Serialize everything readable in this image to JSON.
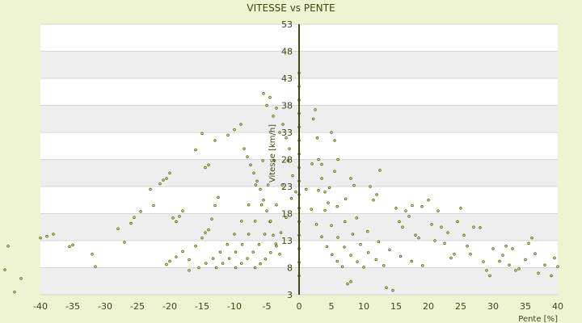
{
  "chart_data": {
    "type": "scatter",
    "title": "VITESSE vs PENTE",
    "xlabel": "Pente [%]",
    "ylabel": "Vitesse [km/h]",
    "xlim": [
      -40,
      40
    ],
    "ylim": [
      3,
      53
    ],
    "x_ticks": [
      "-40",
      "-35",
      "-30",
      "-25",
      "-20",
      "-15",
      "-10",
      "-5",
      "0",
      "5",
      "10",
      "15",
      "20",
      "25",
      "30",
      "35",
      "40"
    ],
    "y_ticks": [
      "53",
      "48",
      "43",
      "38",
      "33",
      "28",
      "23",
      "18",
      "13",
      "8",
      "3"
    ],
    "grid": true,
    "legend": "none",
    "colors": {
      "marker": "#5a6a12",
      "marker_fill": "#f4f7de",
      "band_light": "#ffffff",
      "band_dark": "#eeeeee",
      "gridline": "#d6d6d6",
      "axis": "#3f4a12"
    },
    "series": [
      {
        "points": [
          [
            -40,
            13.5
          ],
          [
            -39,
            13.8
          ],
          [
            -38,
            14.2
          ],
          [
            -35.5,
            11.9
          ],
          [
            -35,
            12.2
          ],
          [
            -32,
            10.5
          ],
          [
            -31.5,
            8.2
          ],
          [
            -28,
            15.2
          ],
          [
            -27,
            12.7
          ],
          [
            -26,
            16.2
          ],
          [
            -25.5,
            17.3
          ],
          [
            -24.5,
            18.4
          ],
          [
            -23,
            22.5
          ],
          [
            -22.5,
            19.5
          ],
          [
            -21.5,
            23.5
          ],
          [
            -21,
            24.2
          ],
          [
            -20.5,
            24.5
          ],
          [
            -20,
            25.5
          ],
          [
            -19.5,
            17.2
          ],
          [
            -19,
            16.5
          ],
          [
            -18.5,
            17.5
          ],
          [
            -18,
            18.5
          ],
          [
            -17,
            7.5
          ],
          [
            -20.5,
            8.6
          ],
          [
            -20,
            9.2
          ],
          [
            -19,
            10
          ],
          [
            -18,
            11
          ],
          [
            -17,
            9.5
          ],
          [
            -16,
            12
          ],
          [
            -15,
            13.5
          ],
          [
            -14.5,
            14.5
          ],
          [
            -14,
            15
          ],
          [
            -13.5,
            17
          ],
          [
            -13,
            19.5
          ],
          [
            -12.5,
            21
          ],
          [
            -16,
            29.8
          ],
          [
            -15,
            32.8
          ],
          [
            -14.5,
            26.5
          ],
          [
            -14,
            27
          ],
          [
            -13,
            31.5
          ],
          [
            -11,
            32.5
          ],
          [
            -10,
            33.5
          ],
          [
            -9,
            34.5
          ],
          [
            -8.5,
            30
          ],
          [
            -8,
            28.5
          ],
          [
            -7.5,
            27
          ],
          [
            -7,
            25.5
          ],
          [
            -6.5,
            24
          ],
          [
            -6,
            22.5
          ],
          [
            -5.5,
            20.5
          ],
          [
            -5,
            18.5
          ],
          [
            -4.5,
            16.5
          ],
          [
            -4,
            14
          ],
          [
            -3.5,
            12
          ],
          [
            -3,
            10.5
          ],
          [
            -5.5,
            40.2
          ],
          [
            -5,
            38
          ],
          [
            -4.5,
            39.5
          ],
          [
            -4,
            36
          ],
          [
            -3.5,
            37.5
          ],
          [
            -3,
            33
          ],
          [
            -2.5,
            34.5
          ],
          [
            -2,
            32
          ],
          [
            -1.5,
            30
          ],
          [
            -1,
            25
          ],
          [
            -0.5,
            22
          ],
          [
            -6.8,
            8
          ],
          [
            -6,
            8.7
          ],
          [
            -5.2,
            9.6
          ],
          [
            -4.4,
            10.8
          ],
          [
            -3.6,
            12.4
          ],
          [
            -2.8,
            14.5
          ],
          [
            -2,
            17.3
          ],
          [
            -1.2,
            20.8
          ],
          [
            -9.8,
            8
          ],
          [
            -8.9,
            8.8
          ],
          [
            -8,
            9.7
          ],
          [
            -7.1,
            10.9
          ],
          [
            -6.2,
            12.3
          ],
          [
            -5.3,
            14.2
          ],
          [
            -4.4,
            16.6
          ],
          [
            -3.5,
            19.6
          ],
          [
            -2.6,
            23.3
          ],
          [
            -1.7,
            27.8
          ],
          [
            -12.8,
            8
          ],
          [
            -11.8,
            8.8
          ],
          [
            -10.8,
            9.7
          ],
          [
            -9.8,
            10.9
          ],
          [
            -8.8,
            12.3
          ],
          [
            -7.8,
            14.2
          ],
          [
            -6.8,
            16.6
          ],
          [
            -5.8,
            19.6
          ],
          [
            -4.8,
            23.3
          ],
          [
            -3.8,
            27.8
          ],
          [
            -15.5,
            8
          ],
          [
            -14.4,
            8.8
          ],
          [
            -13.3,
            9.7
          ],
          [
            -12.2,
            10.9
          ],
          [
            -11.1,
            12.3
          ],
          [
            -10,
            14.2
          ],
          [
            -8.9,
            16.6
          ],
          [
            -7.8,
            19.6
          ],
          [
            -6.7,
            23.3
          ],
          [
            -5.6,
            27.8
          ],
          [
            0,
            6.5
          ],
          [
            0,
            9
          ],
          [
            0,
            11.5
          ],
          [
            0,
            14
          ],
          [
            0,
            16.5
          ],
          [
            0,
            19
          ],
          [
            0,
            21.5
          ],
          [
            0,
            24
          ],
          [
            0,
            26.5
          ],
          [
            0,
            29
          ],
          [
            0,
            31.5
          ],
          [
            0,
            34
          ],
          [
            0,
            36.5
          ],
          [
            0,
            39
          ],
          [
            0,
            41.5
          ],
          [
            0,
            44
          ],
          [
            2.2,
            35.5
          ],
          [
            2.5,
            37.2
          ],
          [
            2.8,
            32
          ],
          [
            3,
            28
          ],
          [
            3.5,
            24.5
          ],
          [
            4,
            22
          ],
          [
            4.5,
            20
          ],
          [
            5,
            33
          ],
          [
            5.5,
            31.5
          ],
          [
            6,
            28
          ],
          [
            1.1,
            22.5
          ],
          [
            1.9,
            18.8
          ],
          [
            2.7,
            16
          ],
          [
            3.5,
            13.7
          ],
          [
            4.3,
            11.9
          ],
          [
            5.1,
            10.4
          ],
          [
            5.9,
            9.2
          ],
          [
            6.7,
            8.2
          ],
          [
            2,
            27.2
          ],
          [
            3,
            22.3
          ],
          [
            4,
            18.6
          ],
          [
            5,
            15.8
          ],
          [
            6,
            13.6
          ],
          [
            7,
            11.8
          ],
          [
            8,
            10.3
          ],
          [
            9,
            9.1
          ],
          [
            10,
            8.1
          ],
          [
            3.5,
            27.1
          ],
          [
            4.7,
            22.8
          ],
          [
            5.9,
            19.3
          ],
          [
            7.1,
            16.5
          ],
          [
            8.3,
            14.2
          ],
          [
            9.5,
            12.3
          ],
          [
            10.7,
            10.8
          ],
          [
            11.9,
            9.5
          ],
          [
            13.1,
            8.4
          ],
          [
            5.5,
            25.8
          ],
          [
            7.2,
            20.7
          ],
          [
            8.9,
            17.2
          ],
          [
            10.6,
            14.7
          ],
          [
            12.3,
            12.8
          ],
          [
            14,
            11.3
          ],
          [
            15.7,
            10.1
          ],
          [
            17.4,
            9.2
          ],
          [
            19.1,
            8.4
          ],
          [
            7.5,
            5
          ],
          [
            8,
            5.4
          ],
          [
            8,
            24.5
          ],
          [
            8.5,
            23.2
          ],
          [
            11,
            23
          ],
          [
            11.5,
            20.5
          ],
          [
            12,
            21.5
          ],
          [
            12.5,
            26
          ],
          [
            13.5,
            4.3
          ],
          [
            14.5,
            3.8
          ],
          [
            15,
            19
          ],
          [
            15.5,
            16.5
          ],
          [
            16,
            15.5
          ],
          [
            16.5,
            18.5
          ],
          [
            17,
            17.5
          ],
          [
            17.5,
            19.5
          ],
          [
            18,
            14
          ],
          [
            18.5,
            13.5
          ],
          [
            19,
            19.3
          ],
          [
            20,
            20.5
          ],
          [
            20.5,
            16
          ],
          [
            21,
            13
          ],
          [
            21.5,
            18.5
          ],
          [
            22,
            15.5
          ],
          [
            22.5,
            12.5
          ],
          [
            23,
            14.5
          ],
          [
            23.5,
            9.8
          ],
          [
            24,
            10.5
          ],
          [
            24.5,
            16.5
          ],
          [
            25,
            19
          ],
          [
            25.5,
            14
          ],
          [
            26,
            12
          ],
          [
            26.5,
            10.5
          ],
          [
            27,
            15.5
          ],
          [
            28,
            15.4
          ],
          [
            28.5,
            9.1
          ],
          [
            29,
            7.5
          ],
          [
            29.5,
            6.5
          ],
          [
            30,
            11.5
          ],
          [
            31,
            9.2
          ],
          [
            31.5,
            10.3
          ],
          [
            32,
            12
          ],
          [
            32.5,
            8.5
          ],
          [
            33,
            11.5
          ],
          [
            33.5,
            7.5
          ],
          [
            34,
            7.8
          ],
          [
            35,
            9.5
          ],
          [
            35.5,
            12.5
          ],
          [
            36,
            13.5
          ],
          [
            36.5,
            10.6
          ],
          [
            37,
            7
          ],
          [
            38,
            8.5
          ],
          [
            39,
            6.5
          ],
          [
            39.5,
            9.8
          ],
          [
            40,
            8.2
          ]
        ]
      }
    ],
    "offscale_points": [
      [
        -45,
        12
      ],
      [
        -45.5,
        7.6
      ],
      [
        -43,
        6
      ],
      [
        -44,
        3.5
      ]
    ]
  }
}
